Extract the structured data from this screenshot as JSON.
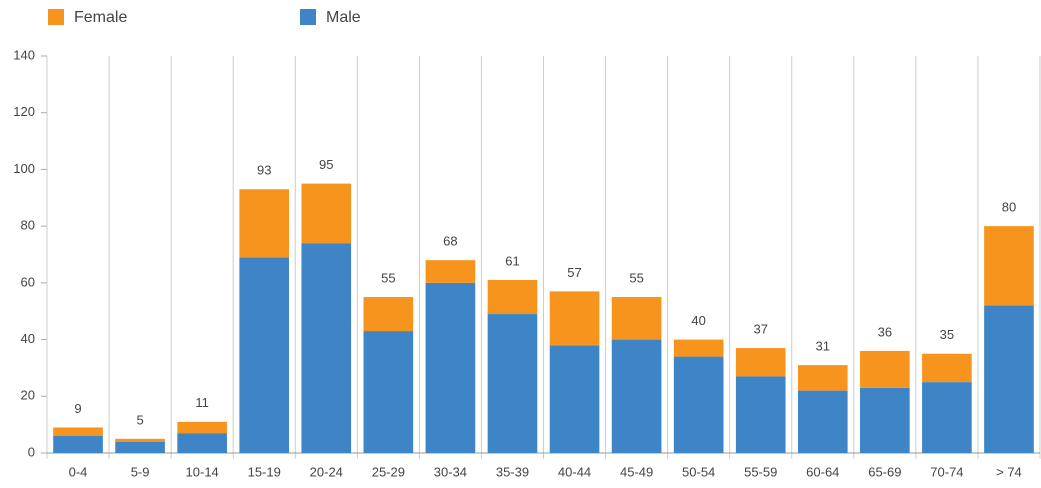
{
  "chart_data": {
    "type": "stacked_bar",
    "categories": [
      "0-4",
      "5-9",
      "10-14",
      "15-19",
      "20-24",
      "25-29",
      "30-34",
      "35-39",
      "40-44",
      "45-49",
      "50-54",
      "55-59",
      "60-64",
      "65-69",
      "70-74",
      "> 74"
    ],
    "series": [
      {
        "name": "Male",
        "color": "#3d85c6",
        "values": [
          6,
          4,
          7,
          69,
          74,
          43,
          60,
          49,
          38,
          40,
          34,
          27,
          22,
          23,
          25,
          52
        ]
      },
      {
        "name": "Female",
        "color": "#f7941d",
        "values": [
          3,
          1,
          4,
          24,
          21,
          12,
          8,
          12,
          19,
          15,
          6,
          10,
          9,
          13,
          10,
          28
        ]
      }
    ],
    "totals": [
      9,
      5,
      11,
      93,
      95,
      55,
      68,
      61,
      57,
      55,
      40,
      37,
      31,
      36,
      35,
      80
    ],
    "ylim": [
      0,
      140
    ],
    "yticks": [
      0,
      20,
      40,
      60,
      80,
      100,
      120,
      140
    ],
    "grid": false
  }
}
